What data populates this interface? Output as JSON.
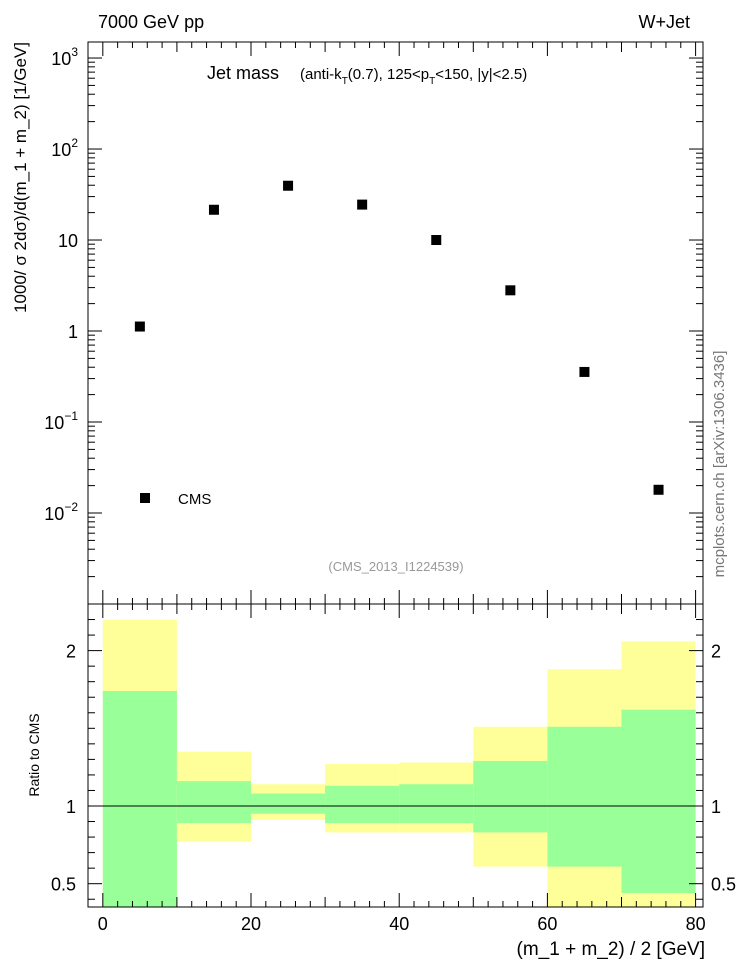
{
  "header": {
    "energy_label": "7000 GeV pp",
    "process_label": "W+Jet",
    "side_credit": "mcplots.cern.ch [arXiv:1306.3436]",
    "analysis_id": "(CMS_2013_I1224539)"
  },
  "chart_data": [
    {
      "type": "scatter",
      "title_main": "Jet mass",
      "title_sub_parts": [
        "(anti-k",
        "T",
        "(0.7), 125<p",
        "T",
        "<150, |y|<2.5)"
      ],
      "ylabel": "1000/ σ 2dσ)/d(m_1 + m_2) [1/GeV]",
      "yscale": "log",
      "ylim": [
        0.001,
        1500
      ],
      "y_ticks": [
        {
          "value": 1000,
          "base": "10",
          "exp": "3"
        },
        {
          "value": 100,
          "base": "10",
          "exp": "2"
        },
        {
          "value": 10,
          "base": "10",
          "exp": ""
        },
        {
          "value": 1,
          "base": "1",
          "exp": ""
        },
        {
          "value": 0.1,
          "base": "10",
          "exp": "−1"
        },
        {
          "value": 0.01,
          "base": "10",
          "exp": "−2"
        }
      ],
      "xlim": [
        -2,
        81
      ],
      "legend": "bottom-left",
      "series": [
        {
          "name": "CMS",
          "color": "#000000",
          "x": [
            5,
            15,
            25,
            35,
            45,
            55,
            65,
            75
          ],
          "y": [
            1.12,
            21.5,
            39.5,
            24.5,
            10.0,
            2.8,
            0.355,
            0.018
          ]
        }
      ]
    },
    {
      "type": "area",
      "ylabel": "Ratio to CMS",
      "xlabel": "(m_1 + m_2) / 2 [GeV]",
      "ylim": [
        0.35,
        2.3
      ],
      "y_ticks": [
        "0.5",
        "1",
        "2"
      ],
      "y_tick_values": [
        0.5,
        1,
        2
      ],
      "x_ticks": [
        "0",
        "20",
        "40",
        "60",
        "80"
      ],
      "x_tick_values": [
        0,
        20,
        40,
        60,
        80
      ],
      "xlim": [
        -2,
        81
      ],
      "reference_line": 1,
      "bins": [
        {
          "lo": 0,
          "hi": 10,
          "outer": [
            0.35,
            2.2
          ],
          "inner": [
            0.35,
            1.74
          ]
        },
        {
          "lo": 10,
          "hi": 20,
          "outer": [
            0.77,
            1.35
          ],
          "inner": [
            0.89,
            1.16
          ]
        },
        {
          "lo": 20,
          "hi": 30,
          "outer": [
            0.91,
            1.14
          ],
          "inner": [
            0.95,
            1.08
          ]
        },
        {
          "lo": 30,
          "hi": 40,
          "outer": [
            0.83,
            1.27
          ],
          "inner": [
            0.89,
            1.13
          ]
        },
        {
          "lo": 40,
          "hi": 50,
          "outer": [
            0.83,
            1.28
          ],
          "inner": [
            0.89,
            1.14
          ]
        },
        {
          "lo": 50,
          "hi": 60,
          "outer": [
            0.61,
            1.51
          ],
          "inner": [
            0.83,
            1.29
          ]
        },
        {
          "lo": 60,
          "hi": 70,
          "outer": [
            0.35,
            1.88
          ],
          "inner": [
            0.61,
            1.51
          ]
        },
        {
          "lo": 70,
          "hi": 80,
          "outer": [
            0.35,
            2.06
          ],
          "inner": [
            0.44,
            1.62
          ]
        }
      ],
      "colors": {
        "outer_band": "#ffff99",
        "inner_band": "#99ff99"
      }
    }
  ]
}
